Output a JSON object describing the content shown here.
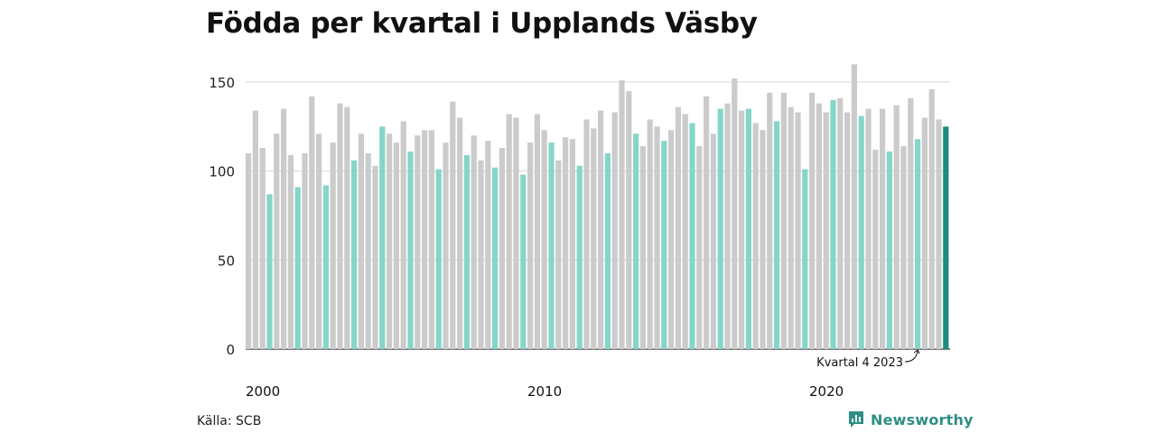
{
  "chart_data": {
    "type": "bar",
    "title": "Födda per kvartal i Upplands Väsby",
    "xlabel": "",
    "ylabel": "",
    "ylim": [
      0,
      160
    ],
    "yticks": [
      0,
      50,
      100,
      150
    ],
    "x_tick_labels": [
      "2000",
      "2010",
      "2020"
    ],
    "grid": "horizontal",
    "highlight_quarter": 4,
    "colors": {
      "default": "#cbcbcb",
      "highlight": "#86d5c9",
      "latest": "#1e8a7e"
    },
    "annotation": "Kvartal 4 2023",
    "values": [
      110,
      134,
      113,
      87,
      121,
      135,
      109,
      91,
      110,
      142,
      121,
      92,
      116,
      138,
      136,
      106,
      121,
      110,
      103,
      125,
      121,
      116,
      128,
      111,
      120,
      123,
      123,
      101,
      116,
      139,
      130,
      109,
      120,
      106,
      117,
      102,
      113,
      132,
      130,
      98,
      116,
      132,
      123,
      116,
      106,
      119,
      118,
      103,
      129,
      124,
      134,
      110,
      133,
      151,
      145,
      121,
      114,
      129,
      125,
      117,
      123,
      136,
      132,
      127,
      114,
      142,
      121,
      135,
      138,
      152,
      134,
      135,
      127,
      123,
      144,
      128,
      144,
      136,
      133,
      101,
      144,
      138,
      133,
      140,
      141,
      133,
      160,
      131,
      135,
      112,
      135,
      111,
      137,
      114,
      141,
      118,
      130,
      146,
      129,
      125
    ]
  },
  "footer": {
    "source": "Källa: SCB",
    "brand": "Newsworthy"
  },
  "icons": {
    "brand_logo": "newsworthy-logo-icon"
  }
}
